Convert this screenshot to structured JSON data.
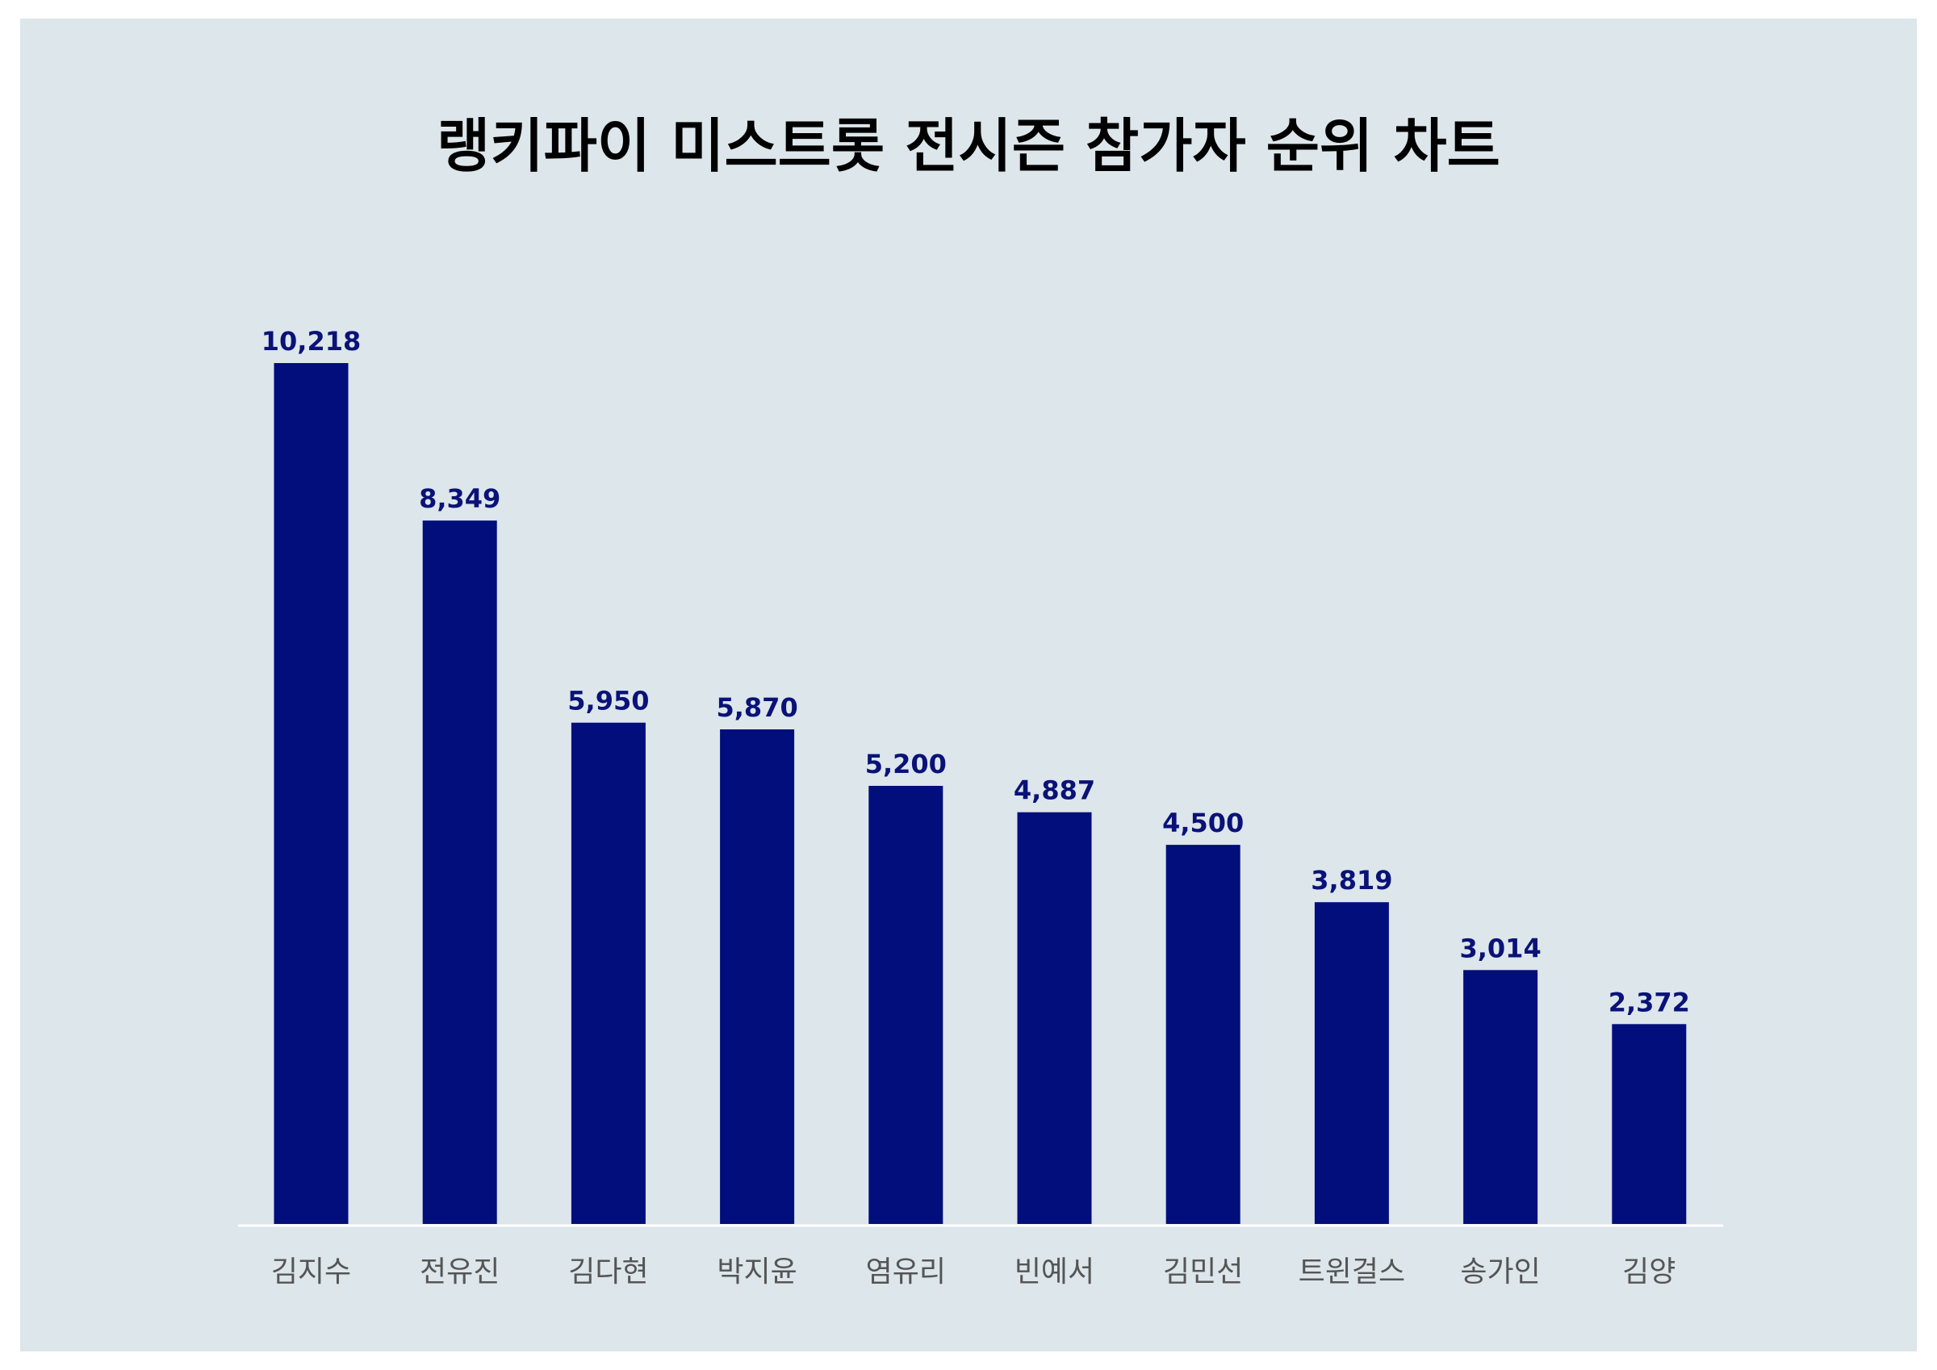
{
  "chart_data": {
    "type": "bar",
    "title": "랭키파이 미스트롯 전시즌 참가자 순위 차트",
    "categories": [
      "김지수",
      "전유진",
      "김다현",
      "박지윤",
      "염유리",
      "빈예서",
      "김민선",
      "트윈걸스",
      "송가인",
      "김양"
    ],
    "values": [
      10218,
      8349,
      5950,
      5870,
      5200,
      4887,
      4500,
      3819,
      3014,
      2372
    ],
    "value_labels": [
      "10,218",
      "8,349",
      "5,950",
      "5,870",
      "5,200",
      "4,887",
      "4,500",
      "3,819",
      "3,014",
      "2,372"
    ],
    "xlabel": "",
    "ylabel": "",
    "grid": false,
    "legend": "none",
    "colors": {
      "bar": "#020e7c",
      "value_label": "#0a1278",
      "category_label": "#555555",
      "baseline": "#ffffff",
      "background": "#dce6eb"
    }
  }
}
